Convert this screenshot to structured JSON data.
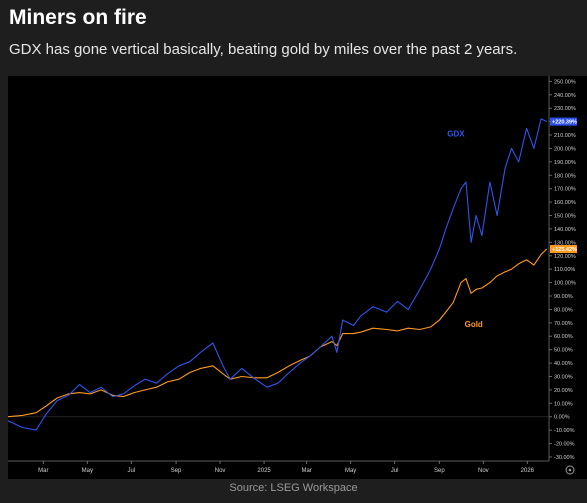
{
  "header": {
    "title": "Miners on fire",
    "subtitle": "GDX has gone vertical basically, beating gold by miles over the past 2 years."
  },
  "footer": {
    "source": "Source: LSEG Workspace"
  },
  "colors": {
    "background": "#1e1e1e",
    "plot_background": "#000000",
    "gdx": "#2f54eb",
    "gold": "#ff9a1f",
    "axis_text": "#cfcfcf"
  },
  "chart_data": {
    "type": "line",
    "x_tick_labels": [
      "Mar",
      "May",
      "Jul",
      "Sep",
      "Nov",
      "2025",
      "Mar",
      "May",
      "Jul",
      "Sep",
      "Nov",
      "2026"
    ],
    "x_ticks": [
      "2024-03-01",
      "2024-05-01",
      "2024-07-01",
      "2024-09-01",
      "2024-11-01",
      "2025-01-01",
      "2025-03-01",
      "2025-05-01",
      "2025-07-01",
      "2025-09-01",
      "2025-11-01",
      "2026-01-01"
    ],
    "xlim": [
      "2024-01-12",
      "2026-01-31"
    ],
    "ylim": [
      -33,
      254
    ],
    "y_ticks": [
      -30,
      -20,
      -10,
      0,
      10,
      20,
      30,
      40,
      50,
      60,
      70,
      80,
      90,
      100,
      110,
      120,
      130,
      140,
      150,
      160,
      170,
      180,
      190,
      200,
      210,
      220,
      230,
      240,
      250
    ],
    "y_tick_labels": [
      "-30.00%",
      "-20.00%",
      "-10.00%",
      "0.00%",
      "10.00%",
      "20.00%",
      "30.00%",
      "40.00%",
      "50.00%",
      "60.00%",
      "70.00%",
      "80.00%",
      "90.00%",
      "100.00%",
      "110.00%",
      "120.00%",
      "130.00%",
      "140.00%",
      "150.00%",
      "160.00%",
      "170.00%",
      "180.00%",
      "190.00%",
      "200.00%",
      "210.00%",
      "220.00%",
      "230.00%",
      "240.00%",
      "250.00%"
    ],
    "y_unit": "%",
    "grid": false,
    "series": [
      {
        "name": "GDX",
        "color": "#2f54eb",
        "last_label": "+220.39%",
        "x": [
          "2024-01-12",
          "2024-02-01",
          "2024-02-20",
          "2024-03-05",
          "2024-03-20",
          "2024-04-05",
          "2024-04-20",
          "2024-05-05",
          "2024-05-20",
          "2024-06-05",
          "2024-06-20",
          "2024-07-05",
          "2024-07-20",
          "2024-08-05",
          "2024-08-20",
          "2024-09-05",
          "2024-09-20",
          "2024-10-05",
          "2024-10-22",
          "2024-11-05",
          "2024-11-15",
          "2024-12-01",
          "2024-12-20",
          "2025-01-05",
          "2025-01-20",
          "2025-02-05",
          "2025-02-20",
          "2025-03-05",
          "2025-03-20",
          "2025-04-05",
          "2025-04-12",
          "2025-04-20",
          "2025-05-05",
          "2025-05-15",
          "2025-06-01",
          "2025-06-20",
          "2025-07-05",
          "2025-07-20",
          "2025-08-05",
          "2025-08-20",
          "2025-09-01",
          "2025-09-10",
          "2025-09-20",
          "2025-10-01",
          "2025-10-08",
          "2025-10-15",
          "2025-10-22",
          "2025-10-30",
          "2025-11-10",
          "2025-11-20",
          "2025-12-01",
          "2025-12-10",
          "2025-12-20",
          "2025-12-31",
          "2026-01-10",
          "2026-01-20",
          "2026-01-28"
        ],
        "y": [
          -3,
          -8,
          -10,
          2,
          12,
          16,
          24,
          18,
          22,
          15,
          17,
          23,
          28,
          25,
          32,
          38,
          41,
          48,
          55,
          38,
          28,
          36,
          28,
          22,
          25,
          33,
          40,
          45,
          52,
          60,
          48,
          72,
          68,
          75,
          82,
          78,
          86,
          80,
          95,
          110,
          125,
          140,
          155,
          170,
          175,
          130,
          150,
          135,
          175,
          150,
          185,
          200,
          190,
          215,
          200,
          222,
          220
        ]
      },
      {
        "name": "Gold",
        "color": "#ff9a1f",
        "last_label": "+125.42%",
        "x": [
          "2024-01-12",
          "2024-02-01",
          "2024-02-20",
          "2024-03-05",
          "2024-03-20",
          "2024-04-05",
          "2024-04-20",
          "2024-05-05",
          "2024-05-20",
          "2024-06-05",
          "2024-06-20",
          "2024-07-05",
          "2024-07-20",
          "2024-08-05",
          "2024-08-20",
          "2024-09-05",
          "2024-09-20",
          "2024-10-05",
          "2024-10-22",
          "2024-11-05",
          "2024-11-15",
          "2024-12-01",
          "2024-12-20",
          "2025-01-05",
          "2025-01-20",
          "2025-02-05",
          "2025-02-20",
          "2025-03-05",
          "2025-03-20",
          "2025-04-05",
          "2025-04-12",
          "2025-04-20",
          "2025-05-05",
          "2025-05-15",
          "2025-06-01",
          "2025-06-20",
          "2025-07-05",
          "2025-07-20",
          "2025-08-05",
          "2025-08-20",
          "2025-09-01",
          "2025-09-10",
          "2025-09-20",
          "2025-10-01",
          "2025-10-08",
          "2025-10-15",
          "2025-10-22",
          "2025-10-30",
          "2025-11-10",
          "2025-11-20",
          "2025-12-01",
          "2025-12-10",
          "2025-12-20",
          "2025-12-31",
          "2026-01-10",
          "2026-01-20",
          "2026-01-28"
        ],
        "y": [
          0,
          1,
          3,
          8,
          14,
          17,
          18,
          17,
          20,
          16,
          15,
          18,
          20,
          22,
          26,
          28,
          33,
          36,
          38,
          32,
          28,
          30,
          29,
          29,
          33,
          38,
          42,
          45,
          52,
          56,
          53,
          62,
          62,
          63,
          66,
          65,
          64,
          66,
          65,
          67,
          72,
          78,
          85,
          100,
          103,
          92,
          95,
          96,
          100,
          105,
          108,
          110,
          114,
          117,
          113,
          121,
          125
        ]
      }
    ],
    "annotations": [
      {
        "text": "GDX",
        "x": "2025-09-12",
        "y": 209
      },
      {
        "text": "Gold",
        "x": "2025-10-06",
        "y": 67
      }
    ]
  }
}
